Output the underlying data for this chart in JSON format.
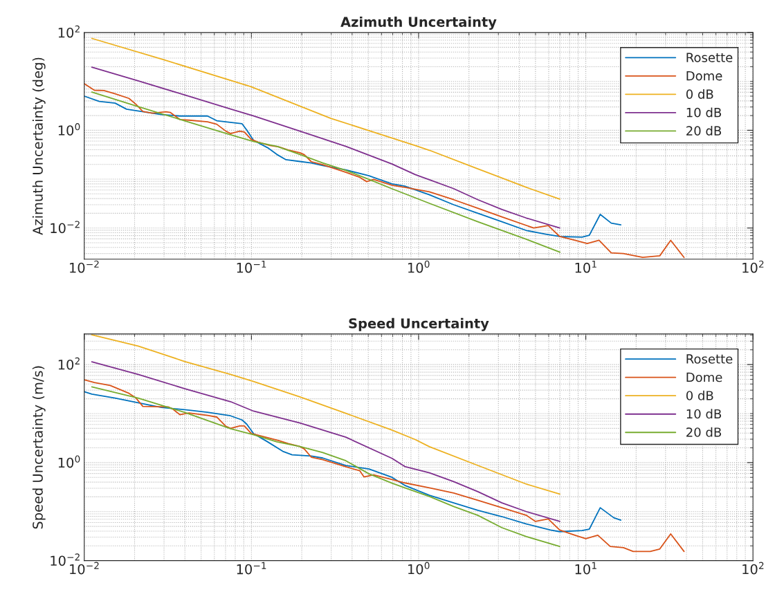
{
  "chart_data": [
    {
      "type": "line",
      "title": "Azimuth Uncertainty",
      "ylabel": "Azimuth Uncertainty (deg)",
      "log": "xy",
      "grid": true,
      "legend": "top right",
      "line_style": "solid",
      "xlim": [
        0.01,
        100
      ],
      "ylim": [
        0.0023,
        100
      ],
      "xticks": [
        {
          "value": 0.01,
          "label": "10$^{−2}$"
        },
        {
          "value": 0.1,
          "label": "10$^{−1}$"
        },
        {
          "value": 1,
          "label": "10$^{0}$"
        },
        {
          "value": 10,
          "label": "10$^{1}$"
        },
        {
          "value": 100,
          "label": "10$^{2}$"
        }
      ],
      "yticks": [
        {
          "value": 0.01,
          "label": "10$^{−2}$"
        },
        {
          "value": 1,
          "label": "10$^{0}$"
        },
        {
          "value": 100,
          "label": "10$^{2}$"
        }
      ],
      "series": [
        {
          "name": "Rosette",
          "color": "#0072bd",
          "x": [
            0.01,
            0.0123,
            0.0153,
            0.0179,
            0.0289,
            0.0373,
            0.0546,
            0.062,
            0.0879,
            0.0937,
            0.103,
            0.125,
            0.142,
            0.161,
            0.195,
            0.228,
            0.267,
            0.367,
            0.505,
            0.693,
            0.827,
            1.16,
            1.62,
            2.26,
            3.15,
            4.41,
            5.76,
            6.98,
            9.5,
            10.5,
            12.2,
            14.2,
            16.2
          ],
          "values": [
            5.0,
            3.9,
            3.6,
            2.7,
            2.1,
            1.96,
            1.96,
            1.57,
            1.36,
            1.01,
            0.62,
            0.44,
            0.32,
            0.25,
            0.23,
            0.215,
            0.19,
            0.155,
            0.117,
            0.08,
            0.072,
            0.048,
            0.03,
            0.02,
            0.0134,
            0.0089,
            0.0075,
            0.0067,
            0.0065,
            0.0071,
            0.019,
            0.0126,
            0.0116
          ]
        },
        {
          "name": "Dome",
          "color": "#d95319",
          "x": [
            0.01,
            0.0115,
            0.0131,
            0.0153,
            0.0185,
            0.0204,
            0.0224,
            0.0255,
            0.0308,
            0.0328,
            0.0373,
            0.0423,
            0.0546,
            0.062,
            0.0703,
            0.075,
            0.0851,
            0.0907,
            0.0998,
            0.11,
            0.129,
            0.146,
            0.166,
            0.195,
            0.207,
            0.228,
            0.267,
            0.367,
            0.445,
            0.489,
            0.538,
            0.693,
            0.827,
            1.16,
            1.62,
            2.26,
            3.15,
            4.88,
            5.96,
            6.98,
            8.6,
            10.2,
            12.0,
            14.2,
            16.8,
            21.9,
            27.7,
            32.2,
            38.7
          ],
          "values": [
            9.0,
            6.6,
            6.5,
            5.6,
            4.5,
            3.4,
            2.44,
            2.24,
            2.39,
            2.31,
            1.66,
            1.61,
            1.49,
            1.33,
            0.96,
            0.86,
            0.96,
            0.925,
            0.65,
            0.57,
            0.49,
            0.456,
            0.395,
            0.346,
            0.317,
            0.228,
            0.197,
            0.138,
            0.109,
            0.089,
            0.099,
            0.075,
            0.068,
            0.055,
            0.038,
            0.0254,
            0.0169,
            0.01,
            0.0112,
            0.0067,
            0.0056,
            0.0048,
            0.0056,
            0.0031,
            0.003,
            0.0025,
            0.0027,
            0.0056,
            0.0025
          ]
        },
        {
          "name": "0 dB",
          "color": "#edb120",
          "x": [
            0.0111,
            0.0299,
            0.0995,
            0.298,
            0.953,
            1.16,
            2.26,
            4.41,
            6.98
          ],
          "values": [
            76,
            27.7,
            7.8,
            1.76,
            0.49,
            0.39,
            0.163,
            0.068,
            0.039
          ]
        },
        {
          "name": "10 dB",
          "color": "#7e2f8e",
          "x": [
            0.0111,
            0.021,
            0.0397,
            0.075,
            0.103,
            0.195,
            0.367,
            0.693,
            0.953,
            1.16,
            1.62,
            2.26,
            3.15,
            4.41,
            6.98
          ],
          "values": [
            19.5,
            10.3,
            5.3,
            2.73,
            1.96,
            0.96,
            0.47,
            0.204,
            0.124,
            0.097,
            0.064,
            0.038,
            0.024,
            0.016,
            0.01
          ]
        },
        {
          "name": "20 dB",
          "color": "#77ac30",
          "x": [
            0.0111,
            0.021,
            0.0397,
            0.075,
            0.103,
            0.142,
            0.195,
            0.267,
            0.367,
            0.505,
            0.69,
            1.16,
            2.26,
            4.4,
            7.0
          ],
          "values": [
            6.05,
            3.05,
            1.57,
            0.81,
            0.59,
            0.47,
            0.32,
            0.215,
            0.151,
            0.099,
            0.064,
            0.032,
            0.0134,
            0.0059,
            0.0032
          ]
        }
      ]
    },
    {
      "type": "line",
      "title": "Speed Uncertainty",
      "ylabel": "Speed Uncertainty (m/s)",
      "log": "xy",
      "grid": true,
      "legend": "top right",
      "line_style": "solid",
      "xlim": [
        0.01,
        100
      ],
      "ylim": [
        0.01,
        420
      ],
      "xticks": [
        {
          "value": 0.01,
          "label": "10$^{−2}$"
        },
        {
          "value": 0.1,
          "label": "10$^{−1}$"
        },
        {
          "value": 1,
          "label": "10$^{0}$"
        },
        {
          "value": 10,
          "label": "10$^{1}$"
        },
        {
          "value": 100,
          "label": "10$^{2}$"
        }
      ],
      "yticks": [
        {
          "value": 0.01,
          "label": "10$^{−2}$"
        },
        {
          "value": 1,
          "label": "10$^{0}$"
        },
        {
          "value": 100,
          "label": "10$^{2}$"
        }
      ],
      "series": [
        {
          "name": "Rosette",
          "color": "#0072bd",
          "x": [
            0.01,
            0.0111,
            0.0153,
            0.021,
            0.0289,
            0.0408,
            0.0546,
            0.075,
            0.0879,
            0.0937,
            0.103,
            0.125,
            0.154,
            0.175,
            0.228,
            0.267,
            0.367,
            0.505,
            0.693,
            0.827,
            1.16,
            1.62,
            2.26,
            3.15,
            4.41,
            6.15,
            6.98,
            9.5,
            10.5,
            12.2,
            14.7,
            16.2
          ],
          "values": [
            28,
            25,
            20.7,
            16.6,
            13.3,
            11.9,
            10.6,
            9.0,
            7.4,
            6.1,
            3.9,
            2.65,
            1.7,
            1.44,
            1.36,
            1.24,
            0.87,
            0.74,
            0.5,
            0.343,
            0.215,
            0.151,
            0.106,
            0.079,
            0.056,
            0.042,
            0.039,
            0.041,
            0.044,
            0.12,
            0.075,
            0.067
          ]
        },
        {
          "name": "Dome",
          "color": "#d95319",
          "x": [
            0.01,
            0.0115,
            0.0143,
            0.0185,
            0.0204,
            0.0224,
            0.0318,
            0.0339,
            0.0373,
            0.0423,
            0.0546,
            0.062,
            0.0703,
            0.075,
            0.0851,
            0.0907,
            0.0998,
            0.11,
            0.146,
            0.166,
            0.195,
            0.207,
            0.228,
            0.267,
            0.367,
            0.445,
            0.471,
            0.538,
            0.693,
            0.827,
            1.16,
            1.62,
            2.26,
            3.15,
            4.41,
            5.0,
            5.96,
            6.98,
            8.6,
            10.0,
            11.8,
            14.0,
            16.8,
            19.2,
            24.3,
            27.7,
            32.2,
            38.7
          ],
          "values": [
            48.9,
            42.8,
            37.4,
            25.9,
            20.7,
            14.0,
            13.7,
            12.3,
            9.5,
            10.3,
            9.2,
            8.5,
            5.5,
            5.0,
            5.6,
            5.6,
            3.9,
            3.6,
            2.8,
            2.45,
            2.12,
            1.9,
            1.29,
            1.15,
            0.82,
            0.68,
            0.51,
            0.56,
            0.45,
            0.385,
            0.305,
            0.24,
            0.17,
            0.12,
            0.084,
            0.063,
            0.071,
            0.042,
            0.033,
            0.028,
            0.033,
            0.0195,
            0.0184,
            0.0154,
            0.0154,
            0.0173,
            0.035,
            0.0154
          ]
        },
        {
          "name": "0 dB",
          "color": "#edb120",
          "x": [
            0.0111,
            0.021,
            0.0397,
            0.075,
            0.103,
            0.195,
            0.367,
            0.693,
            0.953,
            1.16,
            2.26,
            4.41,
            6.98
          ],
          "values": [
            404,
            239,
            116,
            63,
            45,
            21.9,
            10.1,
            4.6,
            2.96,
            2.11,
            0.875,
            0.364,
            0.228
          ]
        },
        {
          "name": "10 dB",
          "color": "#7e2f8e",
          "x": [
            0.0111,
            0.021,
            0.0397,
            0.075,
            0.103,
            0.195,
            0.367,
            0.693,
            0.827,
            1.16,
            1.62,
            2.26,
            3.15,
            4.41,
            6.98
          ],
          "values": [
            114,
            63,
            32.4,
            17.5,
            11.2,
            6.4,
            3.3,
            1.22,
            0.83,
            0.62,
            0.41,
            0.256,
            0.151,
            0.1,
            0.063
          ]
        },
        {
          "name": "20 dB",
          "color": "#77ac30",
          "x": [
            0.0111,
            0.021,
            0.0397,
            0.075,
            0.103,
            0.142,
            0.195,
            0.267,
            0.367,
            0.505,
            0.693,
            0.827,
            1.16,
            1.62,
            2.26,
            3.15,
            4.41,
            6.98
          ],
          "values": [
            35,
            20.7,
            10.6,
            4.9,
            3.7,
            2.65,
            2.12,
            1.6,
            1.09,
            0.59,
            0.38,
            0.305,
            0.203,
            0.127,
            0.084,
            0.047,
            0.031,
            0.0195
          ]
        }
      ]
    }
  ]
}
